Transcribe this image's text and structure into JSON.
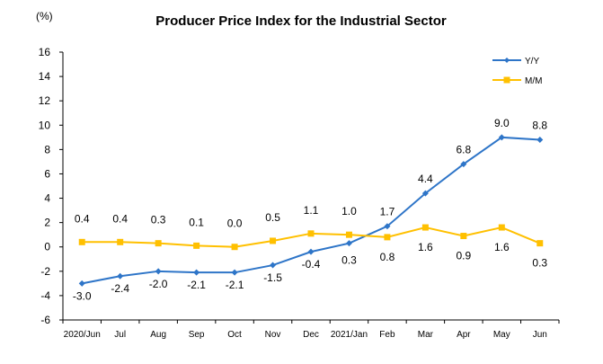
{
  "chart_data": {
    "type": "line",
    "title": "Producer Price Index for the Industrial Sector",
    "unit_label": "(%)",
    "categories": [
      "2020/Jun",
      "Jul",
      "Aug",
      "Sep",
      "Oct",
      "Nov",
      "Dec",
      "2021/Jan",
      "Feb",
      "Mar",
      "Apr",
      "May",
      "Jun"
    ],
    "ylim": [
      -6,
      16
    ],
    "yticks": [
      -6,
      -4,
      -2,
      0,
      2,
      4,
      6,
      8,
      10,
      12,
      14,
      16
    ],
    "ytick_labels": [
      "-6",
      "-4",
      "-2",
      "0",
      "2",
      "4",
      "6",
      "8",
      "10",
      "12",
      "14",
      "16"
    ],
    "grid": false,
    "legend_position": "top-right",
    "series": [
      {
        "name": "Y/Y",
        "color": "#2E75C8",
        "marker": "diamond",
        "values": [
          -3.0,
          -2.4,
          -2.0,
          -2.1,
          -2.1,
          -1.5,
          -0.4,
          0.3,
          1.7,
          4.4,
          6.8,
          9.0,
          8.8
        ],
        "labels": [
          "-3.0",
          "-2.4",
          "-2.0",
          "-2.1",
          "-2.1",
          "-1.5",
          "-0.4",
          "0.3",
          "1.7",
          "4.4",
          "6.8",
          "9.0",
          "8.8"
        ]
      },
      {
        "name": "M/M",
        "color": "#FFC000",
        "marker": "square",
        "values": [
          0.4,
          0.4,
          0.3,
          0.1,
          0.0,
          0.5,
          1.1,
          1.0,
          0.8,
          1.6,
          0.9,
          1.6,
          0.3
        ],
        "labels": [
          "0.4",
          "0.4",
          "0.3",
          "0.1",
          "0.0",
          "0.5",
          "1.1",
          "1.0",
          "0.8",
          "1.6",
          "0.9",
          "1.6",
          "0.3"
        ]
      }
    ]
  }
}
